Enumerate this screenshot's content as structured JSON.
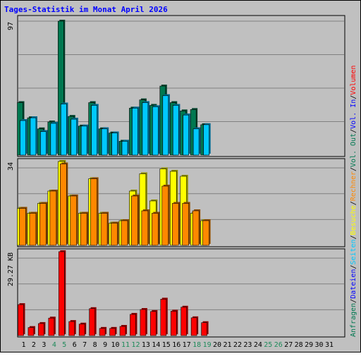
{
  "chart_data": {
    "type": "bar",
    "title": "Tages-Statistik im Monat April 2026",
    "categories": [
      "1",
      "2",
      "3",
      "4",
      "5",
      "6",
      "7",
      "8",
      "9",
      "10",
      "11",
      "12",
      "13",
      "14",
      "15",
      "16",
      "17",
      "18",
      "19",
      "20",
      "21",
      "22",
      "23",
      "24",
      "25",
      "26",
      "27",
      "28",
      "29",
      "30",
      "31"
    ],
    "weekend_days": [
      "4",
      "5",
      "11",
      "12",
      "18",
      "19",
      "25",
      "26"
    ],
    "colors": {
      "background": "#c0c0c0",
      "title": "#0000ff",
      "anfragen": "#007850",
      "dateien": "#0000ff",
      "seiten": "#00c8ff",
      "besuche": "#ffff00",
      "rechner": "#ff8800",
      "volumen": "#ff0000",
      "weekend_label": "#1e8a5a"
    },
    "panels": [
      {
        "name": "hits",
        "ylabel": "97",
        "ymax": 97,
        "series": [
          {
            "name": "Anfragen",
            "values": [
              38,
              27,
              19,
              24,
              97,
              28,
              21,
              38,
              19,
              16,
              10,
              34,
              40,
              36,
              50,
              38,
              32,
              33,
              22,
              0,
              0,
              0,
              0,
              0,
              0,
              0,
              0,
              0,
              0,
              0,
              0
            ]
          },
          {
            "name": "Dateien",
            "values": [
              25,
              27,
              17,
              23,
              37,
              26,
              21,
              36,
              19,
              16,
              10,
              34,
              38,
              35,
              43,
              36,
              29,
              19,
              22,
              0,
              0,
              0,
              0,
              0,
              0,
              0,
              0,
              0,
              0,
              0,
              0
            ]
          },
          {
            "name": "Seiten",
            "values": [
              25,
              27,
              17,
              23,
              37,
              26,
              21,
              36,
              19,
              16,
              10,
              34,
              38,
              35,
              43,
              36,
              29,
              19,
              22,
              0,
              0,
              0,
              0,
              0,
              0,
              0,
              0,
              0,
              0,
              0,
              0
            ]
          }
        ]
      },
      {
        "name": "visits",
        "ylabel": "34",
        "ymax": 34,
        "series": [
          {
            "name": "Besuche",
            "values": [
              15,
              13,
              17,
              22,
              34,
              20,
              13,
              27,
              13,
              9,
              10,
              22,
              29,
              18,
              31,
              30,
              28,
              13,
              10,
              0,
              0,
              0,
              0,
              0,
              0,
              0,
              0,
              0,
              0,
              0,
              0
            ]
          },
          {
            "name": "Rechner",
            "values": [
              15,
              13,
              17,
              22,
              33,
              20,
              13,
              27,
              13,
              9,
              10,
              20,
              14,
              13,
              24,
              17,
              17,
              14,
              10,
              0,
              0,
              0,
              0,
              0,
              0,
              0,
              0,
              0,
              0,
              0,
              0
            ]
          }
        ]
      },
      {
        "name": "volume",
        "ylabel": "29.27 KB",
        "ymax": 29.27,
        "series": [
          {
            "name": "Volumen",
            "values": [
              10.8,
              2.8,
              4.2,
              6.1,
              29.27,
              4.9,
              4.0,
              9.4,
              2.5,
              2.5,
              3.2,
              7.4,
              9.1,
              8.4,
              12.7,
              8.5,
              9.9,
              6.2,
              4.5,
              0,
              0,
              0,
              0,
              0,
              0,
              0,
              0,
              0,
              0,
              0,
              0
            ]
          }
        ]
      }
    ],
    "legend_right": [
      {
        "text": "Anfragen",
        "color": "#007850"
      },
      {
        "text": "/",
        "color": "#000000"
      },
      {
        "text": "Dateien",
        "color": "#0000ff"
      },
      {
        "text": "/",
        "color": "#000000"
      },
      {
        "text": "Seiten",
        "color": "#00c8ff"
      },
      {
        "text": "/",
        "color": "#000000"
      },
      {
        "text": "Besuche",
        "color": "#ffff00"
      },
      {
        "text": "/",
        "color": "#000000"
      },
      {
        "text": "Rechner",
        "color": "#ff8800"
      },
      {
        "text": "/",
        "color": "#000000"
      },
      {
        "text": "Vol. Out",
        "color": "#007850"
      },
      {
        "text": "/",
        "color": "#000000"
      },
      {
        "text": "Vol. In",
        "color": "#0000ff"
      },
      {
        "text": "/",
        "color": "#000000"
      },
      {
        "text": "Volumen",
        "color": "#ff0000"
      }
    ]
  }
}
